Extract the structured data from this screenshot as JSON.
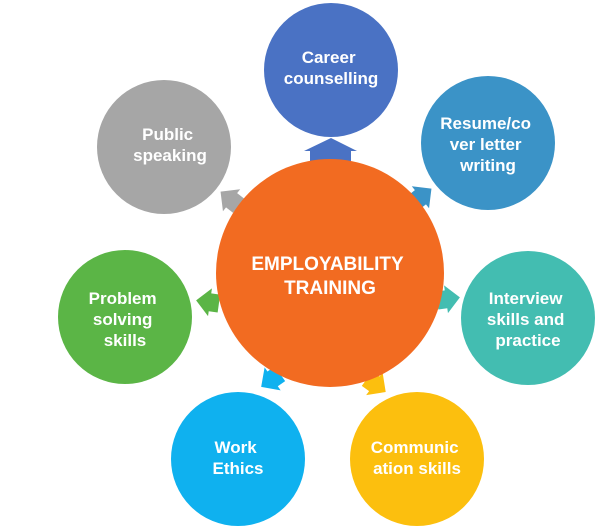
{
  "diagram": {
    "center": {
      "lines": [
        "EMPLOYABILITY",
        "TRAINING"
      ],
      "color": "#f26b21"
    },
    "nodes": [
      {
        "id": "career-counselling",
        "lines": [
          "Career",
          "counselling"
        ],
        "color": "#4a72c4"
      },
      {
        "id": "resume-writing",
        "lines": [
          "Resume/co",
          "ver letter",
          "writing"
        ],
        "color": "#3b93c7"
      },
      {
        "id": "interview-skills",
        "lines": [
          "Interview",
          "skills and",
          "practice"
        ],
        "color": "#43bdb1"
      },
      {
        "id": "communication-skills",
        "lines": [
          "Communic",
          "ation skills"
        ],
        "color": "#fcbf0e"
      },
      {
        "id": "work-ethics",
        "lines": [
          "Work",
          "Ethics"
        ],
        "color": "#0fb1ef"
      },
      {
        "id": "problem-solving",
        "lines": [
          "Problem",
          "solving",
          "skills"
        ],
        "color": "#5bb546"
      },
      {
        "id": "public-speaking",
        "lines": [
          "Public",
          "speaking"
        ],
        "color": "#a6a6a6"
      }
    ]
  }
}
